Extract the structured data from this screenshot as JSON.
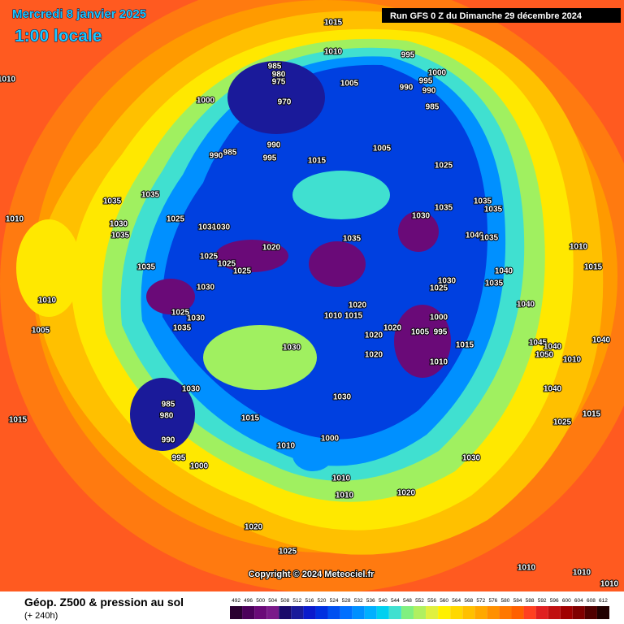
{
  "header": {
    "date": "Mercredi 8 janvier 2025",
    "time": "1:00 locale",
    "run": "Run GFS 0 Z du Dimanche 29 décembre 2024"
  },
  "map": {
    "copyright": "Copyright © 2024 Meteociel.fr",
    "pressure_labels": [
      "1015",
      "1010",
      "995",
      "1000",
      "995",
      "990",
      "990",
      "985",
      "985",
      "980",
      "975",
      "970",
      "1005",
      "1000",
      "990",
      "995",
      "985",
      "990",
      "1005",
      "1015",
      "1025",
      "1035",
      "1035",
      "1030",
      "1035",
      "1025",
      "1030",
      "1030",
      "1010",
      "1030",
      "1035",
      "1035",
      "1035",
      "1040",
      "1035",
      "1010",
      "1015",
      "1020",
      "1025",
      "1025",
      "1025",
      "1035",
      "1035",
      "1030",
      "1040",
      "1035",
      "1030",
      "1025",
      "1040",
      "1010",
      "1025",
      "1030",
      "1035",
      "1005",
      "1010",
      "1015",
      "1020",
      "1000",
      "1005",
      "995",
      "1020",
      "1020",
      "1010",
      "1015",
      "1020",
      "1030",
      "1045",
      "1040",
      "1040",
      "1050",
      "1010",
      "1030",
      "1040",
      "1030",
      "985",
      "980",
      "990",
      "1015",
      "1015",
      "1025",
      "1015",
      "995",
      "1000",
      "1010",
      "1000",
      "1010",
      "1010",
      "1020",
      "1030",
      "1020",
      "1025",
      "1010",
      "1010",
      "1010",
      "1010"
    ]
  },
  "legend": {
    "title": "Géop. Z500 & pression au sol",
    "lead": "(+ 240h)",
    "scale": {
      "values": [
        492,
        496,
        500,
        504,
        508,
        512,
        516,
        520,
        524,
        528,
        532,
        536,
        540,
        544,
        548,
        552,
        556,
        560,
        564,
        568,
        572,
        576,
        580,
        584,
        588,
        592,
        596,
        600,
        604,
        608,
        612
      ],
      "colors": [
        "#2a0030",
        "#4b005a",
        "#6a0a78",
        "#7a1a8a",
        "#1a0a6a",
        "#1a1a9a",
        "#0a1acc",
        "#0030e0",
        "#0050f0",
        "#0070ff",
        "#0090ff",
        "#00b0ff",
        "#00d0f0",
        "#40e0d0",
        "#80f080",
        "#b0f060",
        "#e0f040",
        "#fff000",
        "#ffd800",
        "#ffc000",
        "#ffa800",
        "#ff9000",
        "#ff7800",
        "#ff6000",
        "#ff4020",
        "#e02020",
        "#c01010",
        "#a00000",
        "#800000",
        "#500000",
        "#200000"
      ]
    }
  }
}
